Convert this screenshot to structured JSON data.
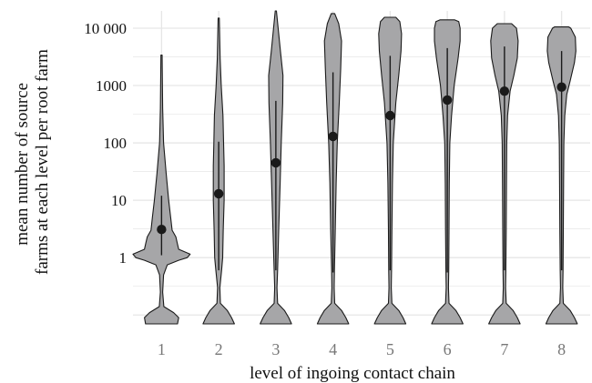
{
  "chart_data": {
    "type": "violin",
    "xlabel": "level of ingoing contact chain",
    "ylabel_lines": [
      "mean number of source",
      "farms at each level per root farm"
    ],
    "y_scale": "log10",
    "ylim": [
      0.07,
      20000
    ],
    "grid": true,
    "legend": "none",
    "y_ticks": [
      {
        "value": 1,
        "label": "1"
      },
      {
        "value": 10,
        "label": "10"
      },
      {
        "value": 100,
        "label": "100"
      },
      {
        "value": 1000,
        "label": "1000"
      },
      {
        "value": 10000,
        "label": "10 000"
      }
    ],
    "categories": [
      "1",
      "2",
      "3",
      "4",
      "5",
      "6",
      "7",
      "8"
    ],
    "series": [
      {
        "category": "1",
        "mean": 3.1,
        "whisker_low": 1.1,
        "whisker_high": 12,
        "min": 0.07,
        "max": 3400,
        "violin": [
          [
            0.07,
            0.56
          ],
          [
            0.09,
            0.6
          ],
          [
            0.11,
            0.42
          ],
          [
            0.14,
            0.08
          ],
          [
            0.25,
            0.04
          ],
          [
            0.5,
            0.07
          ],
          [
            0.75,
            0.2
          ],
          [
            0.9,
            0.6
          ],
          [
            1.0,
            0.9
          ],
          [
            1.15,
            1.0
          ],
          [
            1.4,
            0.6
          ],
          [
            1.8,
            0.55
          ],
          [
            2.3,
            0.5
          ],
          [
            3,
            0.37
          ],
          [
            5,
            0.32
          ],
          [
            10,
            0.25
          ],
          [
            30,
            0.16
          ],
          [
            100,
            0.07
          ],
          [
            400,
            0.04
          ],
          [
            3400,
            0.02
          ]
        ]
      },
      {
        "category": "2",
        "mean": 13,
        "whisker_low": 0.6,
        "whisker_high": 105,
        "min": 0.07,
        "max": 15000,
        "violin": [
          [
            0.07,
            0.55
          ],
          [
            0.09,
            0.45
          ],
          [
            0.12,
            0.3
          ],
          [
            0.16,
            0.06
          ],
          [
            0.3,
            0.04
          ],
          [
            0.6,
            0.1
          ],
          [
            1,
            0.14
          ],
          [
            3,
            0.16
          ],
          [
            10,
            0.19
          ],
          [
            40,
            0.19
          ],
          [
            100,
            0.17
          ],
          [
            300,
            0.15
          ],
          [
            1000,
            0.09
          ],
          [
            3000,
            0.05
          ],
          [
            15000,
            0.02
          ]
        ]
      },
      {
        "category": "3",
        "mean": 45,
        "whisker_low": 0.6,
        "whisker_high": 540,
        "min": 0.07,
        "max": 20000,
        "violin": [
          [
            0.07,
            0.55
          ],
          [
            0.09,
            0.45
          ],
          [
            0.12,
            0.3
          ],
          [
            0.16,
            0.06
          ],
          [
            0.3,
            0.04
          ],
          [
            0.6,
            0.06
          ],
          [
            3,
            0.1
          ],
          [
            20,
            0.15
          ],
          [
            100,
            0.19
          ],
          [
            500,
            0.24
          ],
          [
            1500,
            0.25
          ],
          [
            4000,
            0.16
          ],
          [
            20000,
            0.02
          ]
        ]
      },
      {
        "category": "4",
        "mean": 130,
        "whisker_low": 0.55,
        "whisker_high": 1700,
        "min": 0.07,
        "max": 18000,
        "violin": [
          [
            0.07,
            0.55
          ],
          [
            0.09,
            0.45
          ],
          [
            0.12,
            0.3
          ],
          [
            0.16,
            0.06
          ],
          [
            0.3,
            0.04
          ],
          [
            0.6,
            0.05
          ],
          [
            3,
            0.08
          ],
          [
            20,
            0.11
          ],
          [
            100,
            0.15
          ],
          [
            500,
            0.22
          ],
          [
            2000,
            0.27
          ],
          [
            6000,
            0.3
          ],
          [
            12000,
            0.2
          ],
          [
            18000,
            0.06
          ]
        ]
      },
      {
        "category": "5",
        "mean": 300,
        "whisker_low": 0.6,
        "whisker_high": 3300,
        "min": 0.07,
        "max": 15500,
        "violin": [
          [
            0.07,
            0.55
          ],
          [
            0.09,
            0.45
          ],
          [
            0.12,
            0.3
          ],
          [
            0.16,
            0.06
          ],
          [
            0.3,
            0.04
          ],
          [
            0.6,
            0.05
          ],
          [
            3,
            0.06
          ],
          [
            20,
            0.08
          ],
          [
            100,
            0.11
          ],
          [
            500,
            0.2
          ],
          [
            1500,
            0.3
          ],
          [
            4000,
            0.38
          ],
          [
            8000,
            0.4
          ],
          [
            13000,
            0.34
          ],
          [
            15500,
            0.2
          ]
        ]
      },
      {
        "category": "6",
        "mean": 560,
        "whisker_low": 0.55,
        "whisker_high": 4500,
        "min": 0.07,
        "max": 14000,
        "violin": [
          [
            0.07,
            0.55
          ],
          [
            0.09,
            0.45
          ],
          [
            0.12,
            0.3
          ],
          [
            0.16,
            0.06
          ],
          [
            0.3,
            0.04
          ],
          [
            0.6,
            0.05
          ],
          [
            3,
            0.06
          ],
          [
            20,
            0.07
          ],
          [
            100,
            0.09
          ],
          [
            300,
            0.15
          ],
          [
            1000,
            0.24
          ],
          [
            3000,
            0.38
          ],
          [
            6000,
            0.45
          ],
          [
            10000,
            0.45
          ],
          [
            13000,
            0.4
          ],
          [
            14000,
            0.25
          ]
        ]
      },
      {
        "category": "7",
        "mean": 800,
        "whisker_low": 0.6,
        "whisker_high": 4800,
        "min": 0.07,
        "max": 12000,
        "violin": [
          [
            0.07,
            0.55
          ],
          [
            0.09,
            0.45
          ],
          [
            0.12,
            0.3
          ],
          [
            0.16,
            0.06
          ],
          [
            0.3,
            0.04
          ],
          [
            0.6,
            0.05
          ],
          [
            3,
            0.06
          ],
          [
            20,
            0.07
          ],
          [
            100,
            0.08
          ],
          [
            300,
            0.11
          ],
          [
            800,
            0.2
          ],
          [
            1500,
            0.33
          ],
          [
            3000,
            0.45
          ],
          [
            6000,
            0.48
          ],
          [
            10000,
            0.42
          ],
          [
            12000,
            0.25
          ]
        ]
      },
      {
        "category": "8",
        "mean": 940,
        "whisker_low": 0.6,
        "whisker_high": 4000,
        "min": 0.07,
        "max": 10500,
        "violin": [
          [
            0.07,
            0.55
          ],
          [
            0.09,
            0.45
          ],
          [
            0.12,
            0.3
          ],
          [
            0.16,
            0.06
          ],
          [
            0.3,
            0.04
          ],
          [
            0.6,
            0.05
          ],
          [
            3,
            0.06
          ],
          [
            20,
            0.07
          ],
          [
            100,
            0.08
          ],
          [
            300,
            0.11
          ],
          [
            700,
            0.18
          ],
          [
            1200,
            0.3
          ],
          [
            2500,
            0.45
          ],
          [
            4000,
            0.5
          ],
          [
            7000,
            0.48
          ],
          [
            10000,
            0.32
          ],
          [
            10500,
            0.25
          ]
        ]
      }
    ],
    "colors": {
      "violin_fill": "#a6a6a8",
      "violin_stroke": "#1a1a1a",
      "point": "#1a1a1a",
      "grid": "#e6e6e6",
      "background": "#ffffff"
    }
  }
}
